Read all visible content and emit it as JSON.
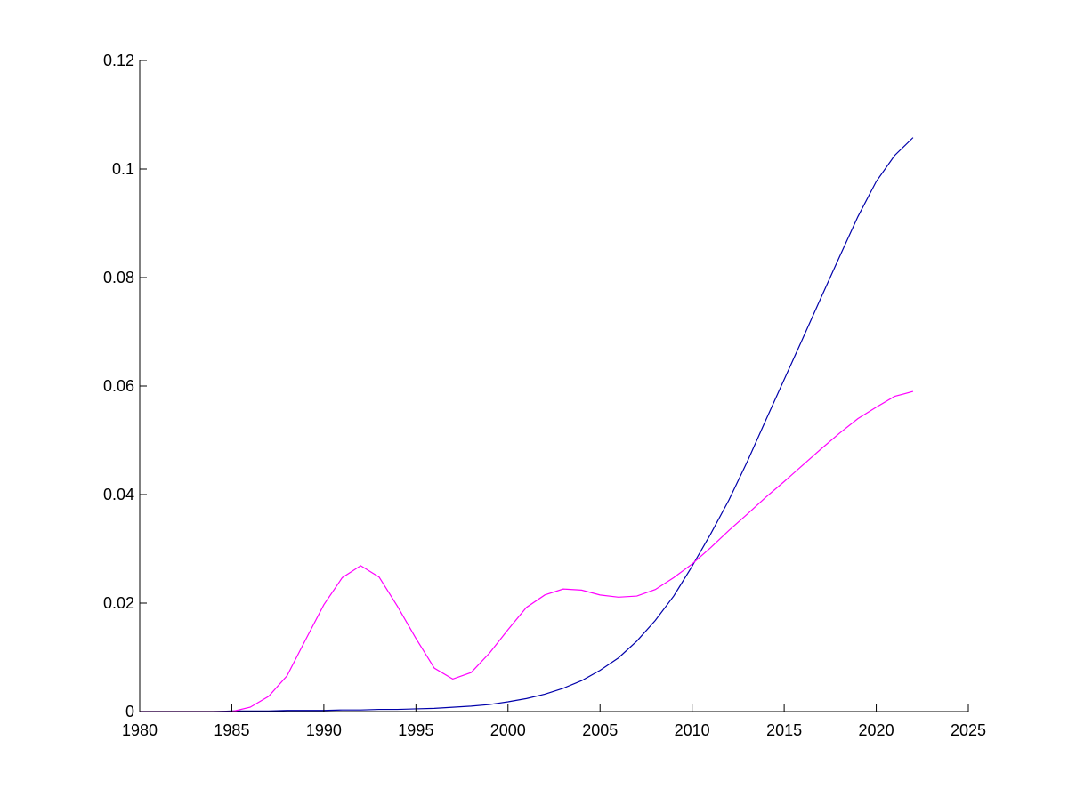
{
  "chart_data": {
    "type": "line",
    "title": "",
    "xlabel": "",
    "ylabel": "",
    "xlim": [
      1980,
      2025
    ],
    "ylim": [
      0,
      0.12
    ],
    "grid": false,
    "x_ticks": [
      "1980",
      "1985",
      "1990",
      "1995",
      "2000",
      "2005",
      "2010",
      "2015",
      "2020",
      "2025"
    ],
    "y_ticks": [
      "0",
      "0.02",
      "0.04",
      "0.06",
      "0.08",
      "0.1",
      "0.12"
    ],
    "x": [
      1980,
      1981,
      1982,
      1983,
      1984,
      1985,
      1986,
      1987,
      1988,
      1989,
      1990,
      1991,
      1992,
      1993,
      1994,
      1995,
      1996,
      1997,
      1998,
      1999,
      2000,
      2001,
      2002,
      2003,
      2004,
      2005,
      2006,
      2007,
      2008,
      2009,
      2010,
      2011,
      2012,
      2013,
      2014,
      2015,
      2016,
      2017,
      2018,
      2019,
      2020,
      2021,
      2022
    ],
    "series": [
      {
        "color": "#0000aa",
        "values": [
          0,
          0,
          0,
          0,
          0,
          0.0001,
          0.0001,
          0.0001,
          0.0002,
          0.0002,
          0.0002,
          0.0003,
          0.0003,
          0.0004,
          0.0004,
          0.0005,
          0.0006,
          0.0008,
          0.001,
          0.0013,
          0.0018,
          0.0024,
          0.0032,
          0.0043,
          0.0057,
          0.0076,
          0.0099,
          0.013,
          0.0168,
          0.0213,
          0.0268,
          0.0327,
          0.039,
          0.0461,
          0.0537,
          0.0612,
          0.0687,
          0.0763,
          0.0838,
          0.0912,
          0.0977,
          0.1025,
          0.1058
        ]
      },
      {
        "color": "#ff00ff",
        "values": [
          0,
          0,
          0,
          0,
          0,
          0,
          0.0008,
          0.0028,
          0.0066,
          0.0132,
          0.0197,
          0.0247,
          0.0269,
          0.0248,
          0.0194,
          0.0135,
          0.008,
          0.006,
          0.0072,
          0.0108,
          0.0151,
          0.0192,
          0.0215,
          0.0226,
          0.0224,
          0.0215,
          0.0211,
          0.0213,
          0.0225,
          0.0247,
          0.0272,
          0.0302,
          0.0334,
          0.0364,
          0.0395,
          0.0424,
          0.0454,
          0.0484,
          0.0513,
          0.054,
          0.0561,
          0.0581,
          0.059
        ]
      }
    ]
  }
}
